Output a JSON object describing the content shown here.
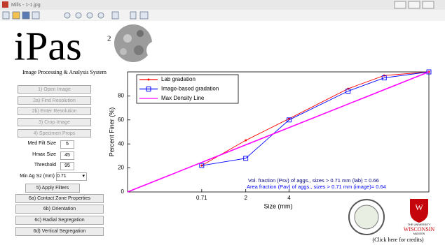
{
  "window": {
    "title": "Mills - 1-1.jpg"
  },
  "logo": {
    "name": "iPas",
    "superscript": "2",
    "subtitle": "Image Processing & Analysis System"
  },
  "buttons": [
    "1) Open Image",
    "2a) Find Resolution",
    "2b) Enter Resolution",
    "3) Crop Image",
    "4) Specimen Props"
  ],
  "fields": [
    {
      "label": "Med Filt Size",
      "value": 5
    },
    {
      "label": "Hmax Size",
      "value": 45
    },
    {
      "label": "Threshold",
      "value": 95
    }
  ],
  "dropdown": {
    "label": "Min Ag Sz (mm)",
    "value": 0.71
  },
  "actions": [
    "5) Apply Filters",
    "6a) Contact Zone Properties",
    "6b) Orientation",
    "6c) Radial Segregation",
    "6d) Vertical Segregation"
  ],
  "chart_data": {
    "type": "line",
    "xlabel": "Size (mm)",
    "ylabel": "Percent Finer (%)",
    "xscale": "power",
    "xpower": 0.45,
    "xlim": [
      0,
      16
    ],
    "ylim": [
      0,
      100
    ],
    "xticks": [
      0.71,
      2,
      4
    ],
    "yticks": [
      0,
      20,
      40,
      60,
      80
    ],
    "legend": "upper left",
    "series": [
      {
        "name": "Lab gradation",
        "color": "#ff0000",
        "marker": "dot",
        "x": [
          0.71,
          2,
          4,
          8,
          11.2,
          16
        ],
        "values": [
          22,
          43,
          61,
          86,
          97,
          100
        ]
      },
      {
        "name": "Image-based gradation",
        "color": "#0000ff",
        "marker": "square",
        "x": [
          0.71,
          2,
          4,
          8,
          11.2,
          16
        ],
        "values": [
          22,
          28,
          60,
          84,
          95,
          100
        ]
      },
      {
        "name": "Max Density Line",
        "color": "#ff00ff",
        "marker": "none",
        "x": [
          0,
          16
        ],
        "values": [
          0,
          100
        ]
      }
    ],
    "annotations": [
      {
        "text": "Vol. fraction (Psv) of aggs., sizes > 0.71 mm (lab) = 0.66",
        "color": "#000080"
      },
      {
        "text": "Area fraction (Pav) of aggs., sizes > 0.71 mm (image)= 0.64",
        "color": "#0000ff"
      }
    ]
  },
  "credits": {
    "university": "THE UNIVERSITY",
    "name": "WISCONSIN",
    "city": "MADISON",
    "link": "(Click here for credits)"
  }
}
